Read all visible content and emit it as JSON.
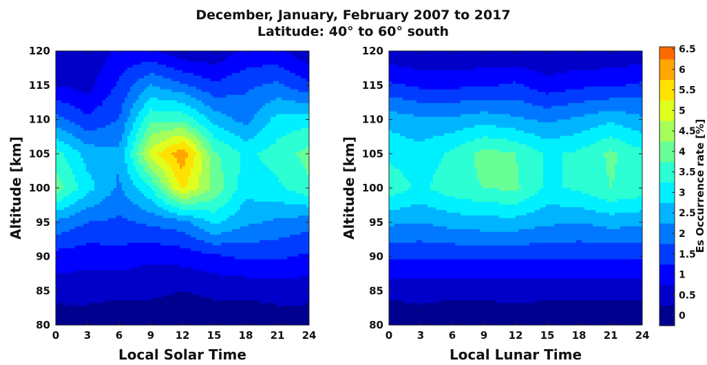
{
  "title_line1": "December, January, February 2007 to 2017",
  "title_line2": "Latitude: 40° to 60° south",
  "chart_data": [
    {
      "type": "heatmap",
      "xlabel": "Local Solar Time",
      "ylabel": "Altitude [km]",
      "xlim": [
        0,
        24
      ],
      "ylim": [
        80,
        120
      ],
      "xticks": [
        0,
        3,
        6,
        9,
        12,
        15,
        18,
        21,
        24
      ],
      "yticks": [
        80,
        85,
        90,
        95,
        100,
        105,
        110,
        115,
        120
      ],
      "x": [
        0,
        3,
        6,
        9,
        12,
        15,
        18,
        21,
        24
      ],
      "y": [
        80,
        85,
        90,
        95,
        100,
        105,
        110,
        115,
        120
      ],
      "z": [
        [
          0.2,
          0.2,
          0.2,
          0.2,
          0.2,
          0.2,
          0.2,
          0.2,
          0.2
        ],
        [
          0.7,
          0.7,
          0.6,
          0.6,
          0.5,
          0.6,
          0.6,
          0.7,
          0.7
        ],
        [
          1.3,
          1.2,
          1.3,
          1.1,
          1.2,
          1.4,
          1.6,
          1.6,
          1.4
        ],
        [
          2.4,
          2.0,
          1.9,
          2.1,
          2.3,
          3.1,
          2.6,
          2.4,
          2.2
        ],
        [
          4.3,
          3.2,
          2.4,
          3.5,
          5.6,
          4.4,
          3.2,
          3.4,
          3.9
        ],
        [
          3.7,
          2.8,
          2.6,
          5.2,
          6.4,
          4.1,
          3.4,
          3.7,
          4.2
        ],
        [
          2.2,
          1.6,
          2.0,
          3.9,
          3.9,
          2.8,
          2.3,
          3.2,
          3.3
        ],
        [
          1.0,
          0.8,
          1.6,
          2.5,
          2.1,
          1.6,
          1.9,
          2.1,
          1.6
        ],
        [
          0.5,
          0.6,
          1.1,
          1.1,
          0.6,
          0.6,
          1.1,
          1.1,
          0.6
        ]
      ]
    },
    {
      "type": "heatmap",
      "xlabel": "Local Lunar Time",
      "ylabel": "Altitude [km]",
      "xlim": [
        0,
        24
      ],
      "ylim": [
        80,
        120
      ],
      "xticks": [
        0,
        3,
        6,
        9,
        12,
        15,
        18,
        21,
        24
      ],
      "yticks": [
        80,
        85,
        90,
        95,
        100,
        105,
        110,
        115,
        120
      ],
      "x": [
        0,
        3,
        6,
        9,
        12,
        15,
        18,
        21,
        24
      ],
      "y": [
        80,
        85,
        90,
        95,
        100,
        105,
        110,
        115,
        120
      ],
      "z": [
        [
          0.2,
          0.2,
          0.2,
          0.2,
          0.2,
          0.2,
          0.2,
          0.2,
          0.2
        ],
        [
          0.6,
          0.7,
          0.6,
          0.6,
          0.7,
          0.6,
          0.6,
          0.6,
          0.6
        ],
        [
          1.6,
          1.6,
          1.6,
          1.6,
          1.6,
          1.6,
          1.6,
          1.6,
          1.6
        ],
        [
          2.6,
          2.5,
          2.7,
          2.8,
          2.8,
          2.6,
          2.5,
          2.7,
          2.6
        ],
        [
          3.8,
          3.4,
          3.8,
          4.0,
          4.1,
          3.4,
          3.6,
          4.0,
          3.8
        ],
        [
          3.4,
          3.2,
          3.6,
          4.2,
          4.0,
          3.4,
          3.6,
          4.1,
          3.6
        ],
        [
          2.8,
          2.6,
          2.6,
          2.8,
          2.6,
          2.4,
          2.6,
          2.9,
          2.6
        ],
        [
          1.6,
          1.4,
          1.4,
          1.4,
          1.6,
          1.2,
          1.4,
          1.4,
          1.6
        ],
        [
          0.6,
          0.5,
          0.5,
          0.6,
          0.5,
          0.5,
          0.5,
          0.6,
          0.6
        ]
      ]
    }
  ],
  "colorbar": {
    "label": "Es Occurrence rate [%]",
    "min": 0,
    "max": 6.8,
    "ticks": [
      {
        "value": 0,
        "label": "0"
      },
      {
        "value": 0.5,
        "label": "0.5"
      },
      {
        "value": 1,
        "label": "1"
      },
      {
        "value": 1.5,
        "label": "1.5"
      },
      {
        "value": 2,
        "label": "2"
      },
      {
        "value": 2.5,
        "label": "2.5"
      },
      {
        "value": 3,
        "label": "3"
      },
      {
        "value": 3.5,
        "label": "3.5"
      },
      {
        "value": 4,
        "label": "4"
      },
      {
        "value": 4.5,
        "label": "4.5"
      },
      {
        "value": 5,
        "label": "5"
      },
      {
        "value": 5.5,
        "label": "5.5"
      },
      {
        "value": 6,
        "label": "6"
      },
      {
        "value": 6.5,
        "label": "6.5"
      }
    ],
    "colors": [
      "#00008f",
      "#0000c8",
      "#0000ff",
      "#003cff",
      "#0078ff",
      "#00b4ff",
      "#00f0ff",
      "#2cffd3",
      "#68ff97",
      "#a4ff5b",
      "#e0ff1f",
      "#ffe200",
      "#ffa600",
      "#ff6a00",
      "#ff2e00",
      "#dc0000"
    ]
  }
}
